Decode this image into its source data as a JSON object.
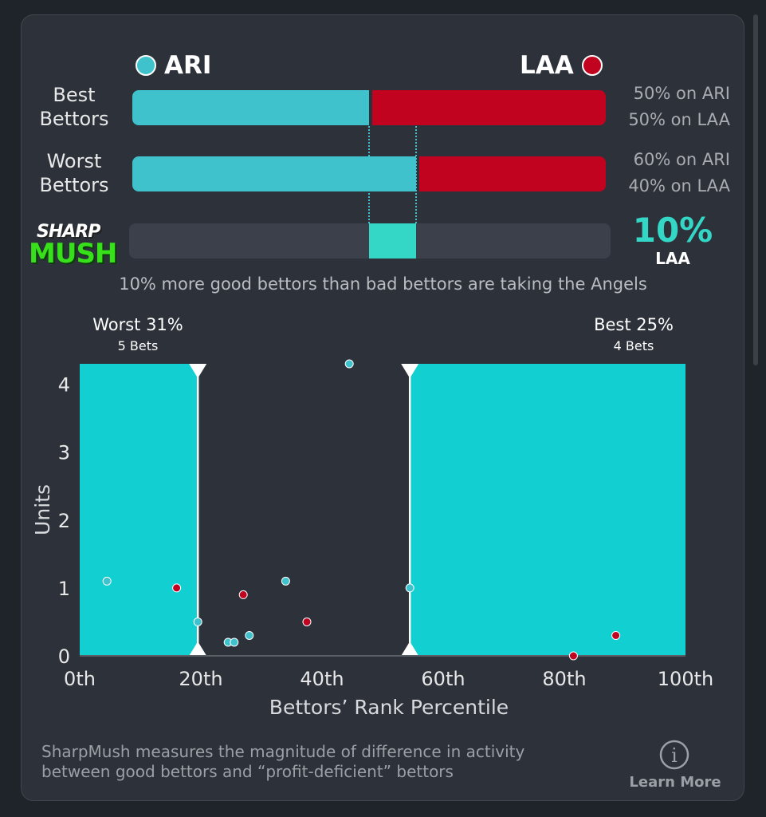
{
  "teams": {
    "away": {
      "abbr": "ARI",
      "color": "#3fc2cc"
    },
    "home": {
      "abbr": "LAA",
      "color": "#c1031f"
    }
  },
  "rows": [
    {
      "label_line1": "Best",
      "label_line2": "Bettors",
      "ari_pct": 50,
      "laa_pct": 50,
      "ari_text": "50% on ARI",
      "laa_text": "50% on LAA"
    },
    {
      "label_line1": "Worst",
      "label_line2": "Bettors",
      "ari_pct": 60,
      "laa_pct": 40,
      "ari_text": "60% on ARI",
      "laa_text": "40% on LAA"
    }
  ],
  "logo": {
    "line1": "SHARP",
    "line2": "MUSH"
  },
  "sharp_mush": {
    "value": "10%",
    "team": "LAA",
    "color": "#34d6c6"
  },
  "summary": "10% more good bettors than bad bettors are taking the Angels",
  "chart_data": {
    "type": "scatter",
    "xlabel": "Bettors’ Rank Percentile",
    "ylabel": "Units",
    "xlim": [
      0,
      100
    ],
    "ylim": [
      0,
      4.3
    ],
    "x_ticks": [
      "0th",
      "20th",
      "40th",
      "60th",
      "80th",
      "100th"
    ],
    "y_ticks": [
      "0",
      "1",
      "2",
      "3",
      "4"
    ],
    "regions": [
      {
        "title": "Worst 31%",
        "subtitle": "5 Bets",
        "x_from": 0,
        "x_to": 19.5
      },
      {
        "title": "Best 25%",
        "subtitle": "4 Bets",
        "x_from": 54.5,
        "x_to": 100
      }
    ],
    "series": [
      {
        "name": "ARI",
        "color": "#3fc2cc",
        "points": [
          [
            4.5,
            1.1
          ],
          [
            19.5,
            0.5
          ],
          [
            24.5,
            0.2
          ],
          [
            25.5,
            0.2
          ],
          [
            28,
            0.3
          ],
          [
            34,
            1.1
          ],
          [
            44.5,
            4.3
          ],
          [
            54.5,
            1.0
          ]
        ]
      },
      {
        "name": "LAA",
        "color": "#c1031f",
        "points": [
          [
            16,
            1.0
          ],
          [
            27,
            0.9
          ],
          [
            37.5,
            0.5
          ],
          [
            81.5,
            0.0
          ],
          [
            88.5,
            0.3
          ]
        ]
      }
    ]
  },
  "footer": {
    "line1": "SharpMush measures the magnitude of difference in activity",
    "line2": "between good bettors and “profit-deficient” bettors",
    "learn_more": "Learn More",
    "info_glyph": "i"
  }
}
